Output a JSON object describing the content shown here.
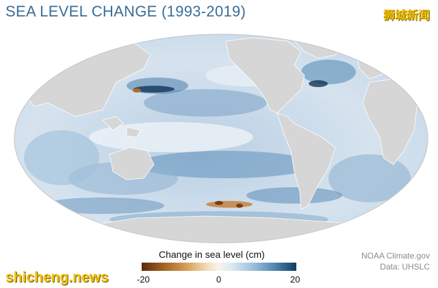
{
  "title": "SEA LEVEL CHANGE (1993-2019)",
  "watermark_cn": "狮城新闻",
  "watermark_en": "shicheng.news",
  "legend": {
    "title": "Change in sea level (cm)",
    "min_label": "-20",
    "mid_label": "0",
    "max_label": "20",
    "range": [
      -20,
      20
    ],
    "colors": {
      "low": "#5a2a0a",
      "mid": "#f7f4ef",
      "high": "#123b5e"
    }
  },
  "credits": {
    "source": "NOAA Climate.gov",
    "data": "Data: UHSLC"
  },
  "map": {
    "projection": "Mollweide-like world",
    "land_color": "#d9d9d9",
    "ocean_low_color": "#e8eef4",
    "ocean_high_color": "#3f76a6"
  }
}
